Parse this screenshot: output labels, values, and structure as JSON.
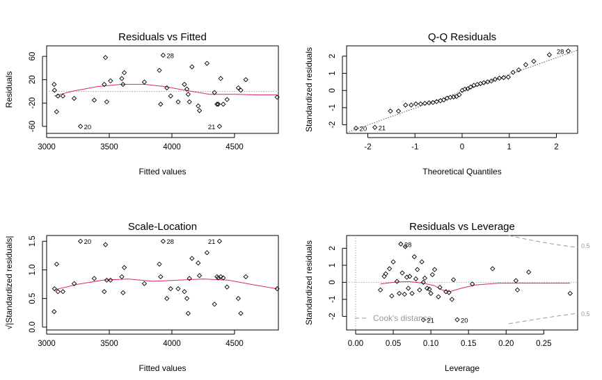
{
  "chart_data": [
    {
      "type": "scatter",
      "title": "Residuals vs Fitted",
      "xlabel": "Fitted values",
      "ylabel": "Residuals",
      "xlim": [
        3000,
        4850
      ],
      "ylim": [
        -72,
        78
      ],
      "xticks": [
        3000,
        3500,
        4000,
        4500
      ],
      "yticks": [
        -60,
        -20,
        20,
        60
      ],
      "points": [
        [
          3060,
          12
        ],
        [
          3063,
          2
        ],
        [
          3080,
          -35
        ],
        [
          3090,
          -8
        ],
        [
          3130,
          -8
        ],
        [
          3220,
          -12
        ],
        [
          3270,
          -60
        ],
        [
          3380,
          -15
        ],
        [
          3460,
          12
        ],
        [
          3470,
          58
        ],
        [
          3480,
          -18
        ],
        [
          3510,
          18
        ],
        [
          3600,
          22
        ],
        [
          3610,
          12
        ],
        [
          3620,
          32
        ],
        [
          3780,
          16
        ],
        [
          3900,
          36
        ],
        [
          3910,
          -22
        ],
        [
          3930,
          62
        ],
        [
          3960,
          6
        ],
        [
          3990,
          -8
        ],
        [
          4050,
          -18
        ],
        [
          4100,
          12
        ],
        [
          4120,
          4
        ],
        [
          4130,
          -5
        ],
        [
          4140,
          -18
        ],
        [
          4160,
          42
        ],
        [
          4210,
          -25
        ],
        [
          4220,
          -33
        ],
        [
          4280,
          48
        ],
        [
          4340,
          -2
        ],
        [
          4360,
          -22
        ],
        [
          4370,
          -22
        ],
        [
          4380,
          -60
        ],
        [
          4390,
          22
        ],
        [
          4410,
          -22
        ],
        [
          4440,
          -14
        ],
        [
          4530,
          6
        ],
        [
          4550,
          2
        ],
        [
          4590,
          20
        ],
        [
          4840,
          -10
        ]
      ],
      "smooth": [
        [
          3060,
          -8
        ],
        [
          3200,
          0
        ],
        [
          3400,
          8
        ],
        [
          3600,
          12
        ],
        [
          3780,
          12
        ],
        [
          3950,
          8
        ],
        [
          4100,
          2
        ],
        [
          4300,
          -5
        ],
        [
          4500,
          -5
        ],
        [
          4700,
          -6
        ],
        [
          4840,
          -6
        ]
      ],
      "refline": 0,
      "labels": [
        {
          "text": "28",
          "x": 3930,
          "y": 62
        },
        {
          "text": "20",
          "x": 3270,
          "y": -60
        },
        {
          "text": "21",
          "x": 4380,
          "y": -60
        }
      ]
    },
    {
      "type": "scatter",
      "title": "Q-Q Residuals",
      "xlabel": "Theoretical Quantiles",
      "ylabel": "Standardized residuals",
      "xlim": [
        -2.45,
        2.45
      ],
      "ylim": [
        -2.5,
        2.6
      ],
      "xticks": [
        -2,
        -1,
        0,
        1,
        2
      ],
      "yticks": [
        -2,
        -1,
        0,
        1,
        2
      ],
      "points": [
        [
          -2.25,
          -2.2
        ],
        [
          -1.85,
          -2.15
        ],
        [
          -1.52,
          -1.2
        ],
        [
          -1.35,
          -1.2
        ],
        [
          -1.2,
          -0.85
        ],
        [
          -1.08,
          -0.85
        ],
        [
          -0.98,
          -0.78
        ],
        [
          -0.88,
          -0.78
        ],
        [
          -0.79,
          -0.75
        ],
        [
          -0.7,
          -0.72
        ],
        [
          -0.62,
          -0.7
        ],
        [
          -0.54,
          -0.65
        ],
        [
          -0.46,
          -0.6
        ],
        [
          -0.39,
          -0.55
        ],
        [
          -0.32,
          -0.45
        ],
        [
          -0.25,
          -0.4
        ],
        [
          -0.18,
          -0.38
        ],
        [
          -0.12,
          -0.35
        ],
        [
          -0.06,
          -0.25
        ],
        [
          0,
          0
        ],
        [
          0.06,
          0.08
        ],
        [
          0.12,
          0.1
        ],
        [
          0.18,
          0.2
        ],
        [
          0.25,
          0.3
        ],
        [
          0.32,
          0.35
        ],
        [
          0.39,
          0.4
        ],
        [
          0.46,
          0.45
        ],
        [
          0.54,
          0.5
        ],
        [
          0.62,
          0.55
        ],
        [
          0.7,
          0.65
        ],
        [
          0.79,
          0.72
        ],
        [
          0.88,
          0.75
        ],
        [
          0.98,
          0.78
        ],
        [
          1.08,
          1.05
        ],
        [
          1.2,
          1.2
        ],
        [
          1.35,
          1.5
        ],
        [
          1.52,
          1.7
        ],
        [
          1.85,
          2.08
        ],
        [
          2.25,
          2.3
        ]
      ],
      "refline_pts": [
        [
          -2.45,
          -2.45
        ],
        [
          2.45,
          2.35
        ]
      ],
      "labels": [
        {
          "text": "20",
          "x": -2.25,
          "y": -2.2
        },
        {
          "text": "21",
          "x": -1.85,
          "y": -2.15
        },
        {
          "text": "28",
          "x": 2.25,
          "y": 2.3
        }
      ]
    },
    {
      "type": "scatter",
      "title": "Scale-Location",
      "xlabel": "Fitted values",
      "ylabel": "√|Standardized residuals|",
      "xlim": [
        3000,
        4850
      ],
      "ylim": [
        -0.05,
        1.6
      ],
      "xticks": [
        3000,
        3500,
        4000,
        4500
      ],
      "yticks": [
        0.0,
        0.5,
        1.0,
        1.5
      ],
      "points": [
        [
          3060,
          0.27
        ],
        [
          3063,
          0.67
        ],
        [
          3080,
          1.1
        ],
        [
          3090,
          0.62
        ],
        [
          3130,
          0.62
        ],
        [
          3220,
          0.76
        ],
        [
          3270,
          1.5
        ],
        [
          3380,
          0.85
        ],
        [
          3460,
          0.62
        ],
        [
          3470,
          1.44
        ],
        [
          3480,
          0.82
        ],
        [
          3510,
          0.82
        ],
        [
          3600,
          0.88
        ],
        [
          3610,
          0.6
        ],
        [
          3620,
          1.04
        ],
        [
          3780,
          0.76
        ],
        [
          3900,
          1.1
        ],
        [
          3910,
          0.88
        ],
        [
          3930,
          1.5
        ],
        [
          3960,
          0.5
        ],
        [
          3990,
          0.67
        ],
        [
          4050,
          0.67
        ],
        [
          4100,
          0.62
        ],
        [
          4120,
          0.5
        ],
        [
          4130,
          0.24
        ],
        [
          4140,
          0.85
        ],
        [
          4160,
          1.2
        ],
        [
          4210,
          1.12
        ],
        [
          4220,
          0.9
        ],
        [
          4280,
          1.3
        ],
        [
          4340,
          0.4
        ],
        [
          4360,
          0.88
        ],
        [
          4370,
          0.86
        ],
        [
          4380,
          1.5
        ],
        [
          4390,
          0.88
        ],
        [
          4410,
          0.86
        ],
        [
          4440,
          0.7
        ],
        [
          4530,
          0.5
        ],
        [
          4550,
          0.24
        ],
        [
          4590,
          0.88
        ],
        [
          4840,
          0.67
        ]
      ],
      "smooth": [
        [
          3060,
          0.65
        ],
        [
          3250,
          0.75
        ],
        [
          3450,
          0.82
        ],
        [
          3650,
          0.84
        ],
        [
          3850,
          0.8
        ],
        [
          4050,
          0.82
        ],
        [
          4250,
          0.84
        ],
        [
          4450,
          0.82
        ],
        [
          4650,
          0.74
        ],
        [
          4840,
          0.67
        ]
      ],
      "labels": [
        {
          "text": "20",
          "x": 3270,
          "y": 1.5
        },
        {
          "text": "28",
          "x": 3930,
          "y": 1.5
        },
        {
          "text": "21",
          "x": 4380,
          "y": 1.5
        }
      ]
    },
    {
      "type": "scatter",
      "title": "Residuals vs Leverage",
      "xlabel": "Leverage",
      "ylabel": "Standardized residuals",
      "xlim": [
        -0.012,
        0.295
      ],
      "ylim": [
        -2.8,
        2.75
      ],
      "xticks": [
        0.0,
        0.05,
        0.1,
        0.15,
        0.2,
        0.25
      ],
      "yticks": [
        -2,
        -1,
        0,
        1,
        2
      ],
      "points": [
        [
          0.033,
          -0.45
        ],
        [
          0.038,
          0.35
        ],
        [
          0.04,
          0.5
        ],
        [
          0.045,
          0.8
        ],
        [
          0.048,
          -0.8
        ],
        [
          0.05,
          1.2
        ],
        [
          0.055,
          0.05
        ],
        [
          0.058,
          -0.65
        ],
        [
          0.06,
          2.25
        ],
        [
          0.062,
          0.55
        ],
        [
          0.065,
          -0.7
        ],
        [
          0.066,
          2.1
        ],
        [
          0.068,
          0.3
        ],
        [
          0.07,
          -0.35
        ],
        [
          0.072,
          0.35
        ],
        [
          0.075,
          -0.65
        ],
        [
          0.078,
          1.5
        ],
        [
          0.08,
          0.2
        ],
        [
          0.082,
          0.75
        ],
        [
          0.085,
          -0.45
        ],
        [
          0.088,
          1.2
        ],
        [
          0.09,
          0.0
        ],
        [
          0.09,
          -2.2
        ],
        [
          0.092,
          0.25
        ],
        [
          0.095,
          -0.35
        ],
        [
          0.098,
          -0.4
        ],
        [
          0.1,
          -0.65
        ],
        [
          0.102,
          0.45
        ],
        [
          0.105,
          0.75
        ],
        [
          0.11,
          -0.85
        ],
        [
          0.112,
          -0.3
        ],
        [
          0.12,
          -0.55
        ],
        [
          0.124,
          -0.6
        ],
        [
          0.128,
          -1.0
        ],
        [
          0.13,
          0.15
        ],
        [
          0.135,
          -2.2
        ],
        [
          0.155,
          -0.1
        ],
        [
          0.182,
          0.8
        ],
        [
          0.213,
          0.1
        ],
        [
          0.215,
          -0.45
        ],
        [
          0.23,
          0.6
        ],
        [
          0.285,
          -0.65
        ]
      ],
      "smooth": [
        [
          0.033,
          -0.1
        ],
        [
          0.05,
          0.0
        ],
        [
          0.07,
          0.05
        ],
        [
          0.09,
          -0.05
        ],
        [
          0.105,
          -0.2
        ],
        [
          0.115,
          -0.45
        ],
        [
          0.125,
          -0.55
        ],
        [
          0.14,
          -0.35
        ],
        [
          0.16,
          -0.15
        ],
        [
          0.19,
          -0.05
        ],
        [
          0.24,
          -0.05
        ],
        [
          0.285,
          -0.05
        ]
      ],
      "refline": 0,
      "labels": [
        {
          "text": "28",
          "x": 0.06,
          "y": 2.25
        },
        {
          "text": "21",
          "x": 0.09,
          "y": -2.2
        },
        {
          "text": "20",
          "x": 0.135,
          "y": -2.2
        }
      ],
      "cooks_label": "Cook's distance",
      "contour_label": "0.5"
    }
  ]
}
